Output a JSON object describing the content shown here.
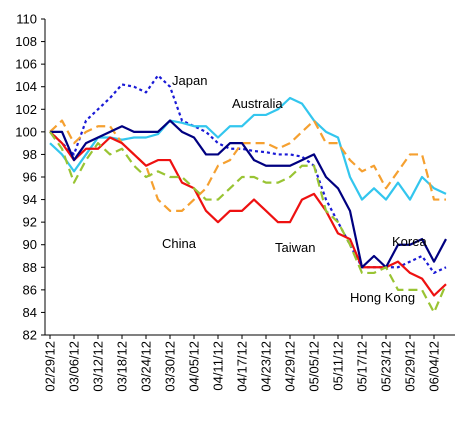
{
  "chart_data": {
    "type": "line",
    "categories": [
      "02/29/12",
      null,
      "03/06/12",
      null,
      "03/12/12",
      null,
      "03/18/12",
      null,
      "03/24/12",
      null,
      "03/30/12",
      null,
      "04/05/12",
      null,
      "04/11/12",
      null,
      "04/17/12",
      null,
      "04/23/12",
      null,
      "04/29/12",
      null,
      "05/05/12",
      null,
      "05/11/12",
      null,
      "05/17/12",
      null,
      "05/23/12",
      null,
      "05/29/12",
      null,
      "06/04/12",
      null
    ],
    "series": [
      {
        "name": "Japan",
        "color": "#1a1ad6",
        "style": "dotted",
        "values": [
          100,
          99,
          98,
          101,
          102,
          103,
          104.2,
          104,
          103.5,
          105,
          104,
          101,
          100.5,
          100,
          99,
          98.5,
          98.5,
          98.3,
          98.2,
          98,
          98,
          97.8,
          97,
          94,
          92,
          90,
          88,
          88,
          88,
          88,
          88.5,
          89,
          87.5,
          88
        ]
      },
      {
        "name": "Australia",
        "color": "#33c6ee",
        "style": "solid",
        "values": [
          99,
          98,
          96.5,
          98,
          99.5,
          99.5,
          99.3,
          99.5,
          99.5,
          99.8,
          101,
          100.8,
          100.5,
          100.5,
          99.5,
          100.5,
          100.5,
          101.5,
          101.5,
          102,
          103,
          102.5,
          101,
          100,
          99.5,
          96,
          94,
          95,
          94,
          95.5,
          94,
          96,
          95,
          94.5
        ]
      },
      {
        "name": "China",
        "color": "#f5a030",
        "style": "dashed",
        "values": [
          100,
          101,
          99,
          100,
          100.5,
          100.5,
          99,
          98,
          97,
          94,
          93,
          93,
          94,
          95,
          97,
          97.5,
          99,
          99,
          99,
          98.5,
          99,
          100,
          101,
          99,
          99,
          97.5,
          96.5,
          97,
          95,
          96.5,
          98,
          98,
          94,
          94
        ]
      },
      {
        "name": "Taiwan",
        "color": "#ee1111",
        "style": "solid",
        "values": [
          100,
          99,
          97.5,
          98.5,
          98.5,
          99.5,
          99,
          98,
          97,
          97.5,
          97.5,
          95.5,
          95,
          93,
          92,
          93,
          93,
          94,
          93,
          92,
          92,
          94,
          94.5,
          93,
          91,
          90.5,
          88,
          88,
          88,
          88.5,
          87.5,
          87,
          85.5,
          86.5
        ]
      },
      {
        "name": "Korea",
        "color": "#000080",
        "style": "solid",
        "values": [
          100,
          100,
          97.5,
          99,
          99.5,
          100,
          100.5,
          100,
          100,
          100,
          101,
          100,
          99.5,
          98,
          98,
          99,
          99,
          97.5,
          97,
          97,
          97,
          97.5,
          98,
          96,
          95,
          93,
          88,
          89,
          88,
          90,
          90,
          90.5,
          88.5,
          90.5
        ]
      },
      {
        "name": "Hong Kong",
        "color": "#99c433",
        "style": "dashed",
        "values": [
          100,
          98.5,
          95.5,
          97.5,
          99,
          98,
          98.5,
          97,
          96,
          96.5,
          96,
          96,
          95,
          94,
          94,
          95,
          96,
          96,
          95.5,
          95.5,
          96,
          97,
          97,
          93,
          92,
          90,
          87.5,
          87.5,
          88,
          86,
          86,
          86,
          84,
          86.5
        ]
      }
    ],
    "ylim": [
      82,
      110
    ],
    "yticks": [
      82,
      84,
      86,
      88,
      90,
      92,
      94,
      96,
      98,
      100,
      102,
      104,
      106,
      108,
      110
    ],
    "grid": false
  }
}
